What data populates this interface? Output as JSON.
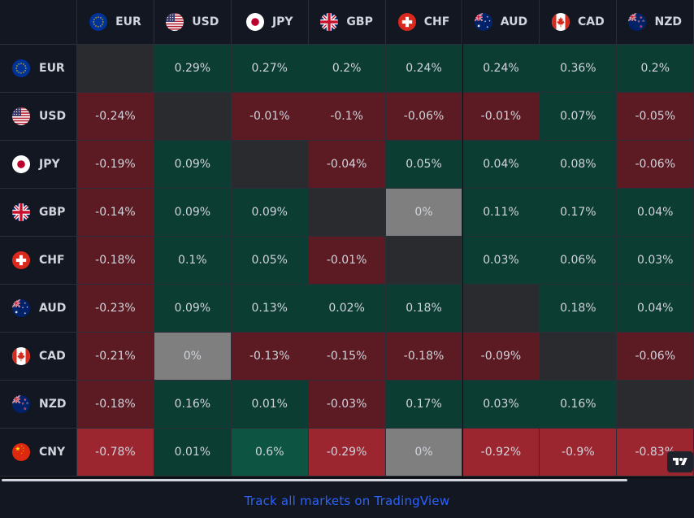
{
  "heatmap": {
    "currencies": [
      {
        "code": "EUR",
        "icon": "eu-flag-icon"
      },
      {
        "code": "USD",
        "icon": "us-flag-icon"
      },
      {
        "code": "JPY",
        "icon": "japan-flag-icon"
      },
      {
        "code": "GBP",
        "icon": "uk-flag-icon"
      },
      {
        "code": "CHF",
        "icon": "swiss-flag-icon"
      },
      {
        "code": "AUD",
        "icon": "australia-flag-icon"
      },
      {
        "code": "CAD",
        "icon": "canada-flag-icon"
      },
      {
        "code": "NZD",
        "icon": "new-zealand-flag-icon"
      }
    ],
    "rows": [
      {
        "code": "EUR",
        "icon": "eu-flag-icon",
        "values": [
          "",
          "0.29%",
          "0.27%",
          "0.2%",
          "0.24%",
          "0.24%",
          "0.36%",
          "0.2%"
        ]
      },
      {
        "code": "USD",
        "icon": "us-flag-icon",
        "values": [
          "-0.24%",
          "",
          "-0.01%",
          "-0.1%",
          "-0.06%",
          "-0.01%",
          "0.07%",
          "-0.05%"
        ]
      },
      {
        "code": "JPY",
        "icon": "japan-flag-icon",
        "values": [
          "-0.19%",
          "0.09%",
          "",
          "-0.04%",
          "0.05%",
          "0.04%",
          "0.08%",
          "-0.06%"
        ]
      },
      {
        "code": "GBP",
        "icon": "uk-flag-icon",
        "values": [
          "-0.14%",
          "0.09%",
          "0.09%",
          "",
          "0%",
          "0.11%",
          "0.17%",
          "0.04%"
        ]
      },
      {
        "code": "CHF",
        "icon": "swiss-flag-icon",
        "values": [
          "-0.18%",
          "0.1%",
          "0.05%",
          "-0.01%",
          "",
          "0.03%",
          "0.06%",
          "0.03%"
        ]
      },
      {
        "code": "AUD",
        "icon": "australia-flag-icon",
        "values": [
          "-0.23%",
          "0.09%",
          "0.13%",
          "0.02%",
          "0.18%",
          "",
          "0.18%",
          "0.04%"
        ]
      },
      {
        "code": "CAD",
        "icon": "canada-flag-icon",
        "values": [
          "-0.21%",
          "0%",
          "-0.13%",
          "-0.15%",
          "-0.18%",
          "-0.09%",
          "",
          "-0.06%"
        ]
      },
      {
        "code": "NZD",
        "icon": "new-zealand-flag-icon",
        "values": [
          "-0.18%",
          "0.16%",
          "0.01%",
          "-0.03%",
          "0.17%",
          "0.03%",
          "0.16%",
          ""
        ]
      },
      {
        "code": "CNY",
        "icon": "china-flag-icon",
        "values": [
          "-0.78%",
          "0.01%",
          "0.6%",
          "-0.29%",
          "0%",
          "-0.92%",
          "-0.9%",
          "-0.83%"
        ]
      }
    ]
  },
  "colors": {
    "positive_weak": "#0b3d33",
    "positive_strong": "#0d5443",
    "negative_weak": "#5c1a23",
    "negative_strong": "#9b2630",
    "zero": "#7f7f7f",
    "diagonal": "#2a2b2f",
    "background": "#131722",
    "text": "#d1d4dc",
    "link": "#2962ff"
  },
  "footer": {
    "link_text": "Track all markets on TradingView"
  },
  "logo": {
    "icon": "tradingview-logo-icon"
  }
}
